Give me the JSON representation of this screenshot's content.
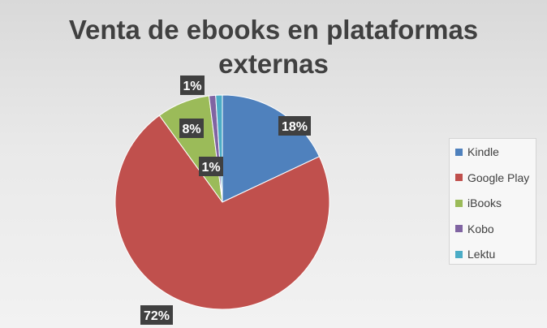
{
  "chart_data": {
    "type": "pie",
    "title": "Venta de ebooks en plataformas externas",
    "title_lines": [
      "Venta de ebooks en plataformas",
      "externas"
    ],
    "legend_position": "right",
    "slices": [
      {
        "name": "Kindle",
        "value": 18,
        "label": "18%",
        "color": "#4f81bd"
      },
      {
        "name": "Google Play",
        "value": 72,
        "label": "72%",
        "color": "#c0504d"
      },
      {
        "name": "iBooks",
        "value": 8,
        "label": "8%",
        "color": "#9bbb59"
      },
      {
        "name": "Kobo",
        "value": 1,
        "label": "1%",
        "color": "#8064a2"
      },
      {
        "name": "Lektu",
        "value": 1,
        "label": "1%",
        "color": "#4bacc6"
      }
    ]
  }
}
